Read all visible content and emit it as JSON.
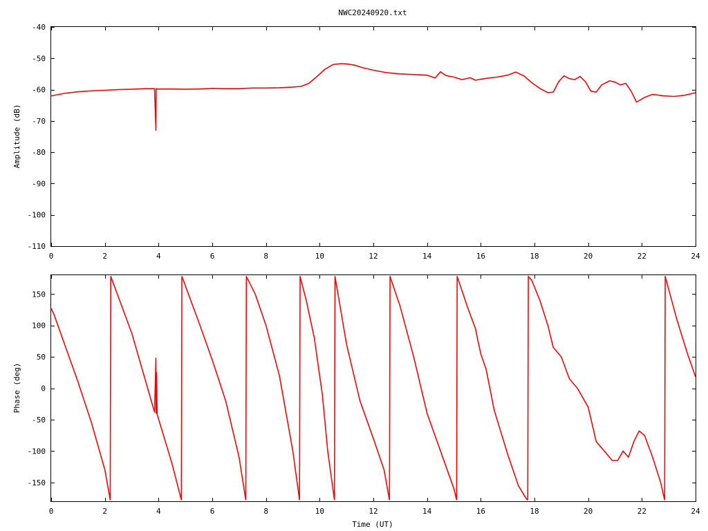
{
  "chart_data": [
    {
      "type": "line",
      "title": "NWC20240920.txt",
      "xlabel": "",
      "ylabel": "Amplitude (dB)",
      "xlim": [
        0,
        24
      ],
      "ylim": [
        -110,
        -40
      ],
      "x_ticks": [
        0,
        2,
        4,
        6,
        8,
        10,
        12,
        14,
        16,
        18,
        20,
        22,
        24
      ],
      "y_ticks": [
        -40,
        -50,
        -60,
        -70,
        -80,
        -90,
        -100,
        -110
      ],
      "x_tick_labels": [
        "0",
        "2",
        "4",
        "6",
        "8",
        "10",
        "12",
        "14",
        "16",
        "18",
        "20",
        "22",
        "24"
      ],
      "y_tick_labels": [
        "-40",
        "-50",
        "-60",
        "-70",
        "-80",
        "-90",
        "-100",
        "-110"
      ],
      "color": "#ff0000",
      "series": [
        {
          "x": [
            0,
            0.5,
            1.0,
            1.5,
            2.0,
            2.5,
            3.0,
            3.5,
            3.85,
            3.9,
            3.91,
            3.95,
            4.5,
            5.0,
            5.5,
            6.0,
            6.5,
            7.0,
            7.5,
            8.0,
            8.5,
            9.0,
            9.3,
            9.6,
            9.9,
            10.2,
            10.5,
            10.8,
            11.0,
            11.3,
            11.6,
            12.0,
            12.5,
            13.0,
            13.5,
            14.0,
            14.3,
            14.5,
            14.7,
            15.0,
            15.3,
            15.6,
            15.8,
            16.0,
            16.3,
            16.6,
            17.0,
            17.3,
            17.6,
            17.9,
            18.2,
            18.5,
            18.7,
            18.9,
            19.1,
            19.3,
            19.5,
            19.7,
            19.9,
            20.1,
            20.3,
            20.5,
            20.8,
            21.0,
            21.2,
            21.4,
            21.6,
            21.8,
            22.1,
            22.4,
            22.8,
            23.2,
            23.6,
            24.0
          ],
          "y": [
            -62,
            -61.2,
            -60.7,
            -60.4,
            -60.2,
            -60.0,
            -59.9,
            -59.7,
            -59.7,
            -73,
            -59.7,
            -59.8,
            -59.8,
            -59.9,
            -59.8,
            -59.6,
            -59.7,
            -59.7,
            -59.5,
            -59.5,
            -59.4,
            -59.2,
            -59.0,
            -58.0,
            -55.8,
            -53.5,
            -52.0,
            -51.7,
            -51.8,
            -52.2,
            -53.0,
            -53.8,
            -54.6,
            -55.0,
            -55.2,
            -55.4,
            -56.3,
            -54.3,
            -55.5,
            -56.0,
            -56.8,
            -56.2,
            -57.0,
            -56.7,
            -56.3,
            -56.0,
            -55.4,
            -54.4,
            -55.6,
            -57.8,
            -59.6,
            -61.0,
            -60.8,
            -57.5,
            -55.6,
            -56.5,
            -56.8,
            -55.8,
            -57.5,
            -60.5,
            -60.8,
            -58.5,
            -57.2,
            -57.6,
            -58.5,
            -58.0,
            -60.5,
            -64.0,
            -62.5,
            -61.5,
            -62.0,
            -62.2,
            -61.8,
            -61.0
          ]
        }
      ]
    },
    {
      "type": "line",
      "title": "",
      "xlabel": "Time (UT)",
      "ylabel": "Phase (deg)",
      "xlim": [
        0,
        24
      ],
      "ylim": [
        -180,
        180
      ],
      "x_ticks": [
        0,
        2,
        4,
        6,
        8,
        10,
        12,
        14,
        16,
        18,
        20,
        22,
        24
      ],
      "y_ticks": [
        150,
        100,
        50,
        0,
        -50,
        -100,
        -150
      ],
      "x_tick_labels": [
        "0",
        "2",
        "4",
        "6",
        "8",
        "10",
        "12",
        "14",
        "16",
        "18",
        "20",
        "22",
        "24"
      ],
      "y_tick_labels": [
        "150",
        "100",
        "50",
        "0",
        "-50",
        "-100",
        "-150"
      ],
      "color": "#ff0000",
      "series": [
        {
          "x": [
            0,
            0.1,
            0.5,
            1.0,
            1.5,
            2.0,
            2.2
          ],
          "y": [
            127,
            118,
            70,
            10,
            -55,
            -130,
            -178
          ]
        },
        {
          "x": [
            2.2,
            2.22,
            3.0,
            3.85,
            3.9,
            3.91,
            3.92,
            3.95,
            4.5,
            4.85
          ],
          "y": [
            -178,
            178,
            88,
            -38,
            48,
            -40,
            25,
            -42,
            -120,
            -178
          ]
        },
        {
          "x": [
            4.85,
            4.87,
            5.5,
            6.0,
            6.5,
            7.0,
            7.25
          ],
          "y": [
            -178,
            178,
            105,
            45,
            -20,
            -110,
            -178
          ]
        },
        {
          "x": [
            7.25,
            7.27,
            7.6,
            8.0,
            8.5,
            9.0,
            9.25
          ],
          "y": [
            -178,
            178,
            150,
            100,
            20,
            -100,
            -178
          ]
        },
        {
          "x": [
            9.25,
            9.27,
            9.5,
            9.8,
            10.1,
            10.3,
            10.55
          ],
          "y": [
            -178,
            178,
            140,
            80,
            -10,
            -100,
            -178
          ]
        },
        {
          "x": [
            10.55,
            10.57,
            11.0,
            11.5,
            12.0,
            12.4,
            12.6
          ],
          "y": [
            -178,
            178,
            70,
            -20,
            -80,
            -130,
            -178
          ]
        },
        {
          "x": [
            12.6,
            12.62,
            13.0,
            13.5,
            14.0,
            14.5,
            15.0,
            15.1
          ],
          "y": [
            -178,
            178,
            130,
            50,
            -40,
            -100,
            -160,
            -178
          ]
        },
        {
          "x": [
            15.1,
            15.12,
            15.5,
            15.8,
            15.9,
            16.0,
            16.2,
            16.5,
            17.0,
            17.4,
            17.7,
            17.75
          ],
          "y": [
            -178,
            178,
            130,
            95,
            75,
            55,
            30,
            -35,
            -105,
            -155,
            -176,
            -178
          ]
        },
        {
          "x": [
            17.75,
            17.77,
            17.9,
            18.2,
            18.5,
            18.7,
            19.0,
            19.3,
            19.6,
            20.0,
            20.3,
            20.6,
            20.9,
            21.1,
            21.3,
            21.5,
            21.7,
            21.9,
            22.1,
            22.4,
            22.7,
            22.85
          ],
          "y": [
            -178,
            178,
            172,
            140,
            100,
            65,
            50,
            15,
            0,
            -30,
            -85,
            -100,
            -115,
            -115,
            -100,
            -110,
            -85,
            -68,
            -75,
            -110,
            -150,
            -178
          ]
        },
        {
          "x": [
            22.85,
            22.87,
            23.3,
            23.7,
            24.0
          ],
          "y": [
            -178,
            178,
            110,
            55,
            18
          ]
        }
      ]
    }
  ]
}
